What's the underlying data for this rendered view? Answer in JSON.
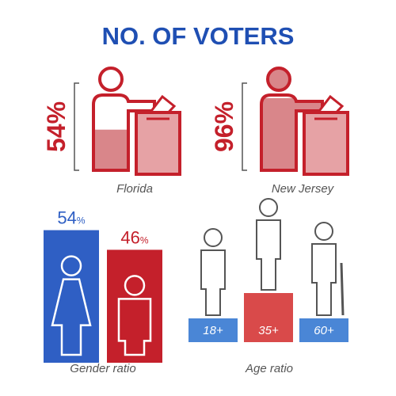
{
  "header": {
    "title": "NO. OF VOTERS"
  },
  "states": [
    {
      "name": "Florida",
      "percent": "54%"
    },
    {
      "name": "New Jersey",
      "percent": "96%"
    }
  ],
  "gender": {
    "label": "Gender ratio",
    "female": {
      "value": "54",
      "unit": "%"
    },
    "male": {
      "value": "46",
      "unit": "%"
    }
  },
  "age": {
    "label": "Age ratio",
    "groups": [
      "18+",
      "35+",
      "60+"
    ]
  }
}
